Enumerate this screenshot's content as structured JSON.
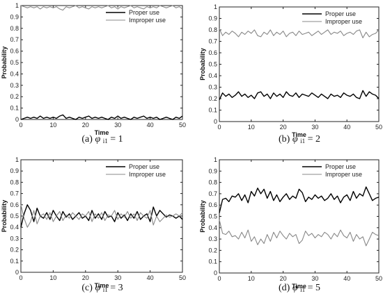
{
  "chart_data": [
    {
      "type": "line",
      "panel": "a",
      "caption": {
        "letter": "(a)",
        "symbol": "φ",
        "subscript": "i1",
        "rest": " = 1"
      },
      "xlabel": "Time",
      "ylabel": "Probability",
      "xlim": [
        0,
        50
      ],
      "ylim": [
        0,
        1
      ],
      "xticks": [
        "0",
        "10",
        "20",
        "30",
        "40",
        "50"
      ],
      "yticks": [
        "0",
        "0.1",
        "0.2",
        "0.3",
        "0.4",
        "0.5",
        "0.6",
        "0.7",
        "0.8",
        "0.9",
        "1"
      ],
      "legend": "top-right",
      "series": [
        {
          "name": "Proper use",
          "color": "#000000",
          "values": [
            0.0,
            0.01,
            0.02,
            0.01,
            0.02,
            0.01,
            0.03,
            0.01,
            0.02,
            0.01,
            0.02,
            0.01,
            0.03,
            0.04,
            0.01,
            0.02,
            0.01,
            0.0,
            0.02,
            0.01,
            0.02,
            0.03,
            0.01,
            0.02,
            0.01,
            0.02,
            0.01,
            0.0,
            0.02,
            0.01,
            0.03,
            0.01,
            0.02,
            0.01,
            0.0,
            0.02,
            0.01,
            0.02,
            0.03,
            0.01,
            0.02,
            0.01,
            0.02,
            0.0,
            0.01,
            0.02,
            0.01,
            0.0,
            0.02,
            0.01,
            0.03
          ]
        },
        {
          "name": "Improper use",
          "color": "#888888",
          "values": [
            1.0,
            0.99,
            0.98,
            0.99,
            0.98,
            0.99,
            0.97,
            0.99,
            0.98,
            0.99,
            0.98,
            0.99,
            0.97,
            0.96,
            0.99,
            0.98,
            0.99,
            1.0,
            0.98,
            0.99,
            0.98,
            0.97,
            0.99,
            0.98,
            0.99,
            0.98,
            0.99,
            1.0,
            0.98,
            0.99,
            0.97,
            0.99,
            0.98,
            0.99,
            1.0,
            0.98,
            0.99,
            0.98,
            0.97,
            0.99,
            0.98,
            0.99,
            0.98,
            1.0,
            0.99,
            0.98,
            0.99,
            1.0,
            0.98,
            0.99,
            0.97
          ]
        }
      ]
    },
    {
      "type": "line",
      "panel": "b",
      "caption": {
        "letter": "(b)",
        "symbol": "φ",
        "subscript": "i1",
        "rest": " = 2"
      },
      "xlabel": "Time",
      "ylabel": "Probability",
      "xlim": [
        0,
        50
      ],
      "ylim": [
        0,
        1
      ],
      "xticks": [
        "0",
        "10",
        "20",
        "30",
        "40",
        "50"
      ],
      "yticks": [
        "0",
        "0.1",
        "0.2",
        "0.3",
        "0.4",
        "0.5",
        "0.6",
        "0.7",
        "0.8",
        "0.9",
        "1"
      ],
      "legend": "top-right",
      "series": [
        {
          "name": "Proper use",
          "color": "#000000",
          "values": [
            0.19,
            0.25,
            0.22,
            0.24,
            0.21,
            0.23,
            0.26,
            0.22,
            0.24,
            0.21,
            0.23,
            0.2,
            0.25,
            0.26,
            0.22,
            0.24,
            0.2,
            0.25,
            0.22,
            0.24,
            0.21,
            0.26,
            0.23,
            0.22,
            0.25,
            0.21,
            0.24,
            0.23,
            0.22,
            0.25,
            0.23,
            0.21,
            0.24,
            0.22,
            0.2,
            0.24,
            0.22,
            0.23,
            0.21,
            0.25,
            0.23,
            0.22,
            0.24,
            0.21,
            0.2,
            0.27,
            0.22,
            0.26,
            0.24,
            0.23,
            0.2
          ]
        },
        {
          "name": "Improper use",
          "color": "#888888",
          "values": [
            0.81,
            0.75,
            0.78,
            0.76,
            0.79,
            0.77,
            0.74,
            0.78,
            0.76,
            0.79,
            0.77,
            0.8,
            0.75,
            0.74,
            0.78,
            0.76,
            0.8,
            0.75,
            0.78,
            0.76,
            0.79,
            0.74,
            0.77,
            0.78,
            0.75,
            0.79,
            0.76,
            0.77,
            0.78,
            0.75,
            0.77,
            0.79,
            0.76,
            0.78,
            0.8,
            0.76,
            0.78,
            0.77,
            0.79,
            0.75,
            0.77,
            0.78,
            0.76,
            0.79,
            0.8,
            0.73,
            0.78,
            0.74,
            0.76,
            0.77,
            0.8
          ]
        }
      ]
    },
    {
      "type": "line",
      "panel": "c",
      "caption": {
        "letter": "(c)",
        "symbol": "φ",
        "subscript": "i1",
        "rest": " = 3"
      },
      "xlabel": "Time",
      "ylabel": "Probability",
      "xlim": [
        0,
        50
      ],
      "ylim": [
        0,
        1
      ],
      "xticks": [
        "0",
        "10",
        "20",
        "30",
        "40",
        "50"
      ],
      "yticks": [
        "0",
        "0.1",
        "0.2",
        "0.3",
        "0.4",
        "0.5",
        "0.6",
        "0.7",
        "0.8",
        "0.9",
        "1"
      ],
      "legend": "top-right",
      "series": [
        {
          "name": "Proper use",
          "color": "#000000",
          "values": [
            0.4,
            0.52,
            0.6,
            0.55,
            0.45,
            0.57,
            0.5,
            0.48,
            0.53,
            0.47,
            0.55,
            0.5,
            0.46,
            0.54,
            0.49,
            0.52,
            0.47,
            0.5,
            0.53,
            0.48,
            0.5,
            0.46,
            0.55,
            0.48,
            0.52,
            0.47,
            0.54,
            0.49,
            0.5,
            0.45,
            0.53,
            0.48,
            0.51,
            0.46,
            0.52,
            0.48,
            0.54,
            0.47,
            0.5,
            0.52,
            0.45,
            0.58,
            0.5,
            0.55,
            0.52,
            0.49,
            0.51,
            0.5,
            0.48,
            0.5,
            0.47
          ]
        },
        {
          "name": "Improper use",
          "color": "#888888",
          "values": [
            0.6,
            0.48,
            0.4,
            0.45,
            0.55,
            0.43,
            0.5,
            0.52,
            0.47,
            0.53,
            0.45,
            0.5,
            0.54,
            0.46,
            0.51,
            0.48,
            0.53,
            0.5,
            0.47,
            0.52,
            0.5,
            0.54,
            0.45,
            0.52,
            0.48,
            0.53,
            0.46,
            0.51,
            0.5,
            0.55,
            0.47,
            0.52,
            0.49,
            0.54,
            0.48,
            0.52,
            0.46,
            0.53,
            0.5,
            0.48,
            0.55,
            0.42,
            0.5,
            0.45,
            0.48,
            0.51,
            0.49,
            0.5,
            0.52,
            0.5,
            0.53
          ]
        }
      ]
    },
    {
      "type": "line",
      "panel": "d",
      "caption": {
        "letter": "(d)",
        "symbol": "φ",
        "subscript": "i1",
        "rest": " = 5"
      },
      "xlabel": "Time",
      "ylabel": "Probability",
      "xlim": [
        0,
        50
      ],
      "ylim": [
        0,
        1
      ],
      "xticks": [
        "0",
        "10",
        "20",
        "30",
        "40",
        "50"
      ],
      "yticks": [
        "0",
        "0.1",
        "0.2",
        "0.3",
        "0.4",
        "0.5",
        "0.6",
        "0.7",
        "0.8",
        "0.9",
        "1"
      ],
      "legend": "top-right",
      "series": [
        {
          "name": "Proper use",
          "color": "#000000",
          "values": [
            0.53,
            0.65,
            0.66,
            0.63,
            0.68,
            0.67,
            0.7,
            0.64,
            0.69,
            0.62,
            0.72,
            0.68,
            0.75,
            0.7,
            0.74,
            0.66,
            0.72,
            0.64,
            0.69,
            0.63,
            0.67,
            0.7,
            0.65,
            0.68,
            0.66,
            0.74,
            0.71,
            0.63,
            0.67,
            0.65,
            0.69,
            0.66,
            0.68,
            0.64,
            0.66,
            0.7,
            0.65,
            0.68,
            0.62,
            0.67,
            0.69,
            0.64,
            0.72,
            0.66,
            0.7,
            0.68,
            0.76,
            0.7,
            0.64,
            0.66,
            0.67
          ]
        },
        {
          "name": "Improper use",
          "color": "#888888",
          "values": [
            0.47,
            0.35,
            0.34,
            0.37,
            0.32,
            0.33,
            0.3,
            0.36,
            0.31,
            0.38,
            0.28,
            0.32,
            0.25,
            0.3,
            0.26,
            0.34,
            0.28,
            0.36,
            0.31,
            0.37,
            0.33,
            0.3,
            0.35,
            0.32,
            0.34,
            0.26,
            0.29,
            0.37,
            0.33,
            0.35,
            0.31,
            0.34,
            0.32,
            0.36,
            0.34,
            0.3,
            0.35,
            0.32,
            0.38,
            0.33,
            0.31,
            0.36,
            0.28,
            0.34,
            0.3,
            0.32,
            0.24,
            0.3,
            0.36,
            0.34,
            0.33
          ]
        }
      ]
    }
  ]
}
